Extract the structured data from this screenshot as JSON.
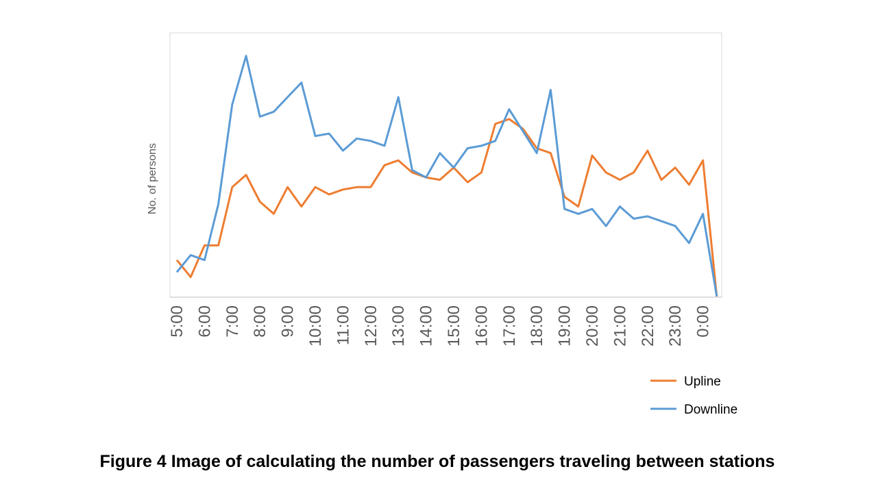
{
  "figure": {
    "caption": "Figure 4  Image of calculating the number of passengers traveling between stations"
  },
  "chart_data": {
    "type": "line",
    "title": "",
    "xlabel": "",
    "ylabel": "No. of persons",
    "ylim": [
      0,
      100
    ],
    "y_tick_labels_shown": false,
    "grid": false,
    "legend_position": "bottom-right",
    "x": [
      "5:00",
      "5:30",
      "6:00",
      "6:30",
      "7:00",
      "7:30",
      "8:00",
      "8:30",
      "9:00",
      "9:30",
      "10:00",
      "10:30",
      "11:00",
      "11:30",
      "12:00",
      "12:30",
      "13:00",
      "13:30",
      "14:00",
      "14:30",
      "15:00",
      "15:30",
      "16:00",
      "16:30",
      "17:00",
      "17:30",
      "18:00",
      "18:30",
      "19:00",
      "19:30",
      "20:00",
      "20:30",
      "21:00",
      "21:30",
      "22:00",
      "22:30",
      "23:00",
      "23:30",
      "0:00",
      "0:30"
    ],
    "x_tick_labels": [
      "5:00",
      "6:00",
      "7:00",
      "8:00",
      "9:00",
      "10:00",
      "11:00",
      "12:00",
      "13:00",
      "14:00",
      "15:00",
      "16:00",
      "17:00",
      "18:00",
      "19:00",
      "20:00",
      "21:00",
      "22:00",
      "23:00",
      "0:00"
    ],
    "series": [
      {
        "name": "Upline",
        "color": "#ED7D31",
        "values": [
          15,
          8,
          21,
          21,
          45,
          50,
          39,
          34,
          45,
          37,
          45,
          42,
          44,
          45,
          45,
          54,
          56,
          51,
          49,
          48,
          53,
          47,
          51,
          71,
          73,
          69,
          61,
          59,
          41,
          37,
          58,
          51,
          48,
          51,
          60,
          48,
          53,
          46,
          56,
          0
        ]
      },
      {
        "name": "Downline",
        "color": "#5B9BD5",
        "values": [
          10,
          17,
          15,
          38,
          79,
          99,
          74,
          76,
          82,
          88,
          66,
          67,
          60,
          65,
          64,
          62,
          82,
          52,
          49,
          59,
          53,
          61,
          62,
          64,
          77,
          68,
          59,
          85,
          36,
          34,
          36,
          29,
          37,
          32,
          33,
          31,
          29,
          22,
          34,
          0
        ]
      }
    ]
  }
}
